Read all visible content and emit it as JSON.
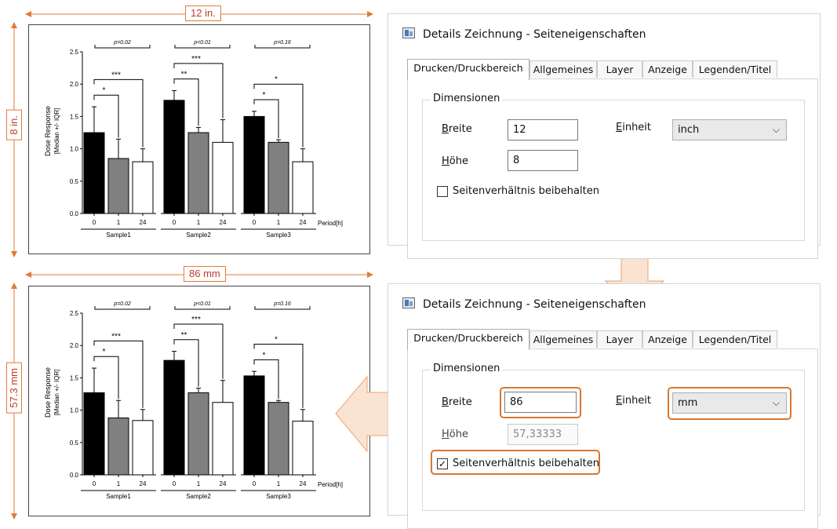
{
  "dims_top": {
    "width_label": "12 in.",
    "height_label": "8 in."
  },
  "dims_bottom": {
    "width_label": "86 mm",
    "height_label": "57.3 mm"
  },
  "chart_data": [
    {
      "type": "bar",
      "ylabel": "Dose Response",
      "ylabel2": "[Median +/- IQR]",
      "ylim": [
        0,
        2.5
      ],
      "yticks": [
        0.0,
        0.5,
        1.0,
        1.5,
        2.0,
        2.5
      ],
      "ytick_labels": [
        "0.0",
        "0.5",
        "1.0",
        "1.5",
        "2.0",
        "2.5"
      ],
      "x_period_label": "Period[h]",
      "categories": [
        "0",
        "1",
        "24"
      ],
      "groups": [
        {
          "name": "Sample1",
          "values": [
            1.25,
            0.85,
            0.8
          ],
          "err": [
            0.4,
            0.3,
            0.2
          ],
          "pvalue": "p=0.02",
          "sig": [
            "*",
            "***"
          ]
        },
        {
          "name": "Sample2",
          "values": [
            1.75,
            1.25,
            1.1
          ],
          "err": [
            0.15,
            0.08,
            0.35
          ],
          "pvalue": "p<0.01",
          "sig": [
            "**",
            "***"
          ]
        },
        {
          "name": "Sample3",
          "values": [
            1.5,
            1.1,
            0.8
          ],
          "err": [
            0.08,
            0.04,
            0.2
          ],
          "pvalue": "p=0.16",
          "sig": [
            "*",
            "*"
          ]
        }
      ],
      "colors": [
        "#000000",
        "#808080",
        "#ffffff"
      ]
    },
    {
      "type": "bar",
      "ylabel": "Dose Response",
      "ylabel2": "[Median +/- IQR]",
      "ylim": [
        0,
        2.5
      ],
      "yticks": [
        0.0,
        0.5,
        1.0,
        1.5,
        2.0,
        2.5
      ],
      "ytick_labels": [
        "0.0",
        "0.5",
        "1.0",
        "1.5",
        "2.0",
        "2.5"
      ],
      "x_period_label": "Period[h]",
      "categories": [
        "0",
        "1",
        "24"
      ],
      "groups": [
        {
          "name": "Sample1",
          "values": [
            1.27,
            0.88,
            0.84
          ],
          "err": [
            0.38,
            0.27,
            0.17
          ],
          "pvalue": "p=0.02",
          "sig": [
            "*",
            "***"
          ]
        },
        {
          "name": "Sample2",
          "values": [
            1.77,
            1.27,
            1.12
          ],
          "err": [
            0.14,
            0.07,
            0.34
          ],
          "pvalue": "p<0.01",
          "sig": [
            "**",
            "***"
          ]
        },
        {
          "name": "Sample3",
          "values": [
            1.53,
            1.12,
            0.83
          ],
          "err": [
            0.07,
            0.03,
            0.18
          ],
          "pvalue": "p=0.16",
          "sig": [
            "*",
            "*"
          ]
        }
      ],
      "colors": [
        "#000000",
        "#808080",
        "#ffffff"
      ]
    }
  ],
  "dialog_top": {
    "title": "Details Zeichnung - Seiteneigenschaften",
    "tabs": [
      "Drucken/Druckbereich",
      "Allgemeines",
      "Layer",
      "Anzeige",
      "Legenden/Titel"
    ],
    "group_label": "Dimensionen",
    "width_label": "Breite",
    "width_value": "12",
    "unit_label": "Einheit",
    "unit_value": "inch",
    "height_label": "Höhe",
    "height_value": "8",
    "keep_ratio_label": "Seitenverhältnis beibehalten",
    "keep_ratio_checked": ""
  },
  "dialog_bottom": {
    "title": "Details Zeichnung - Seiteneigenschaften",
    "tabs": [
      "Drucken/Druckbereich",
      "Allgemeines",
      "Layer",
      "Anzeige",
      "Legenden/Titel"
    ],
    "group_label": "Dimensionen",
    "width_label": "Breite",
    "width_value": "86",
    "unit_label": "Einheit",
    "unit_value": "mm",
    "height_label": "Höhe",
    "height_value": "57,33333",
    "keep_ratio_label": "Seitenverhältnis beibehalten",
    "keep_ratio_checked": "✓"
  },
  "colors": {
    "accent": "#d9772f",
    "arrow_fill": "#fbe3d1",
    "arrow_stroke": "#e9a676",
    "dim_text": "#c0392b"
  }
}
